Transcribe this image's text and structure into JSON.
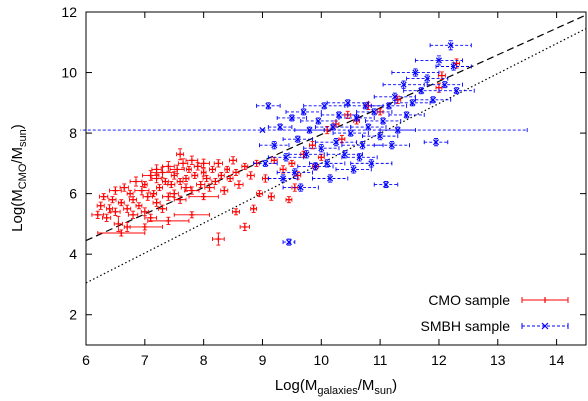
{
  "chart_data": {
    "type": "scatter",
    "xlabel": {
      "base": "Log(M",
      "sub": "galaxies",
      "mid": "/M",
      "sub2": "sun",
      "end": ")"
    },
    "ylabel": {
      "base": "Log(M",
      "sub": "CMO",
      "mid": "/M",
      "sub2": "sun",
      "end": ")"
    },
    "xlim": [
      6,
      14.5
    ],
    "ylim": [
      1,
      12
    ],
    "xticks": [
      "6",
      "7",
      "8",
      "9",
      "10",
      "11",
      "12",
      "13",
      "14"
    ],
    "yticks": [
      "2",
      "4",
      "6",
      "8",
      "10",
      "12"
    ],
    "grid": false,
    "legend_position": "bottom-right",
    "colors": {
      "cmo": "#ff0000",
      "smbh": "#0000ff",
      "fit": "#000000"
    },
    "lines": [
      {
        "style": "dashed",
        "x": [
          6.0,
          14.5
        ],
        "y": [
          4.45,
          11.9
        ]
      },
      {
        "style": "dotted",
        "x": [
          6.0,
          14.5
        ],
        "y": [
          3.05,
          11.45
        ]
      }
    ],
    "series": [
      {
        "name": "CMO sample",
        "marker": "plus",
        "points": [
          [
            6.2,
            5.3,
            0.1,
            0.12
          ],
          [
            6.25,
            5.6,
            0.06,
            0.12
          ],
          [
            6.3,
            5.9,
            0.07,
            0.1
          ],
          [
            6.35,
            5.2,
            0.07,
            0.12
          ],
          [
            6.4,
            5.5,
            0.05,
            0.13
          ],
          [
            6.45,
            5.8,
            0.06,
            0.1
          ],
          [
            6.5,
            5.4,
            0.08,
            0.12
          ],
          [
            6.5,
            6.1,
            0.1,
            0.12
          ],
          [
            6.55,
            5.0,
            0.07,
            0.25
          ],
          [
            6.6,
            5.7,
            0.05,
            0.1
          ],
          [
            6.65,
            6.2,
            0.07,
            0.12
          ],
          [
            6.7,
            5.5,
            0.06,
            0.12
          ],
          [
            6.7,
            4.9,
            0.05,
            0.15
          ],
          [
            6.75,
            6.0,
            0.05,
            0.11
          ],
          [
            6.8,
            5.3,
            0.08,
            0.12
          ],
          [
            6.8,
            5.8,
            0.06,
            0.1
          ],
          [
            6.85,
            6.4,
            0.1,
            0.15
          ],
          [
            6.9,
            5.6,
            0.05,
            0.1
          ],
          [
            6.95,
            6.1,
            0.12,
            0.14
          ],
          [
            7.0,
            5.4,
            0.06,
            0.13
          ],
          [
            7.0,
            6.3,
            0.04,
            0.1
          ],
          [
            7.05,
            5.9,
            0.08,
            0.12
          ],
          [
            7.1,
            6.6,
            0.14,
            0.16
          ],
          [
            7.1,
            5.2,
            0.1,
            0.12
          ],
          [
            7.15,
            6.0,
            0.05,
            0.1
          ],
          [
            7.2,
            5.7,
            0.06,
            0.12
          ],
          [
            7.2,
            6.5,
            0.08,
            0.14
          ],
          [
            7.25,
            6.2,
            0.05,
            0.1
          ],
          [
            7.3,
            6.7,
            0.2,
            0.18
          ],
          [
            7.3,
            5.5,
            0.07,
            0.12
          ],
          [
            7.35,
            6.4,
            0.05,
            0.1
          ],
          [
            7.4,
            5.9,
            0.1,
            0.12
          ],
          [
            7.4,
            6.9,
            0.1,
            0.16
          ],
          [
            7.45,
            6.3,
            0.06,
            0.1
          ],
          [
            7.5,
            6.6,
            0.05,
            0.12
          ],
          [
            7.5,
            6.0,
            0.07,
            0.12
          ],
          [
            7.55,
            6.8,
            0.12,
            0.14
          ],
          [
            7.6,
            6.4,
            0.05,
            0.1
          ],
          [
            7.6,
            5.8,
            0.1,
            0.12
          ],
          [
            7.65,
            7.0,
            0.08,
            0.15
          ],
          [
            7.7,
            6.5,
            0.05,
            0.1
          ],
          [
            7.7,
            6.2,
            0.08,
            0.12
          ],
          [
            7.75,
            6.8,
            0.04,
            0.1
          ],
          [
            7.8,
            6.1,
            0.12,
            0.12
          ],
          [
            7.8,
            7.1,
            0.1,
            0.14
          ],
          [
            7.85,
            6.6,
            0.05,
            0.1
          ],
          [
            7.9,
            6.9,
            0.06,
            0.12
          ],
          [
            7.95,
            6.3,
            0.07,
            0.1
          ],
          [
            8.0,
            6.7,
            0.04,
            0.12
          ],
          [
            8.0,
            7.0,
            0.1,
            0.14
          ],
          [
            8.05,
            6.5,
            0.06,
            0.1
          ],
          [
            8.1,
            6.2,
            0.08,
            0.12
          ],
          [
            8.15,
            6.8,
            0.05,
            0.1
          ],
          [
            8.2,
            6.4,
            0.06,
            0.1
          ],
          [
            8.25,
            7.0,
            0.07,
            0.12
          ],
          [
            8.3,
            6.6,
            0.05,
            0.1
          ],
          [
            8.35,
            6.1,
            0.06,
            0.12
          ],
          [
            8.4,
            6.8,
            0.04,
            0.1
          ],
          [
            8.45,
            6.5,
            0.05,
            0.1
          ],
          [
            8.5,
            7.1,
            0.06,
            0.12
          ],
          [
            8.55,
            6.7,
            0.05,
            0.1
          ],
          [
            8.6,
            6.3,
            0.07,
            0.12
          ],
          [
            8.7,
            6.9,
            0.05,
            0.1
          ],
          [
            8.8,
            6.6,
            0.06,
            0.12
          ],
          [
            8.9,
            7.0,
            0.05,
            0.1
          ],
          [
            6.6,
            4.7,
            0.4,
            0.1
          ],
          [
            7.0,
            4.9,
            0.3,
            0.1
          ],
          [
            7.4,
            5.1,
            0.35,
            0.12
          ],
          [
            7.8,
            5.3,
            0.3,
            0.1
          ],
          [
            8.0,
            5.9,
            0.25,
            0.1
          ],
          [
            7.2,
            6.8,
            0.08,
            0.15
          ],
          [
            7.6,
            7.3,
            0.06,
            0.18
          ],
          [
            8.25,
            4.5,
            0.1,
            0.2
          ],
          [
            8.7,
            4.9,
            0.08,
            0.12
          ],
          [
            8.55,
            5.4,
            0.06,
            0.1
          ],
          [
            8.85,
            5.5,
            0.05,
            0.12
          ],
          [
            8.95,
            6.0,
            0.05,
            0.1
          ],
          [
            9.05,
            6.5,
            0.05,
            0.12
          ],
          [
            9.2,
            7.1,
            0.05,
            0.1
          ],
          [
            9.35,
            6.8,
            0.05,
            0.12
          ],
          [
            9.5,
            7.0,
            0.05,
            0.1
          ],
          [
            9.55,
            6.2,
            0.05,
            0.12
          ],
          [
            9.7,
            7.3,
            0.05,
            0.1
          ],
          [
            9.85,
            7.6,
            0.05,
            0.12
          ],
          [
            10.0,
            7.2,
            0.05,
            0.1
          ],
          [
            10.1,
            8.1,
            0.05,
            0.12
          ],
          [
            10.25,
            8.3,
            0.05,
            0.1
          ],
          [
            10.35,
            7.8,
            0.05,
            0.12
          ],
          [
            10.45,
            8.6,
            0.05,
            0.12
          ],
          [
            10.6,
            8.4,
            0.05,
            0.1
          ],
          [
            10.8,
            8.9,
            0.05,
            0.12
          ],
          [
            11.0,
            8.7,
            0.05,
            0.1
          ],
          [
            11.3,
            9.1,
            0.05,
            0.12
          ],
          [
            12.0,
            9.5,
            0.05,
            0.15
          ],
          [
            12.05,
            9.9,
            0.06,
            0.12
          ],
          [
            12.3,
            10.3,
            0.05,
            0.15
          ],
          [
            9.15,
            5.9,
            0.05,
            0.12
          ],
          [
            9.45,
            5.8,
            0.05,
            0.1
          ],
          [
            9.6,
            6.6,
            0.05,
            0.12
          ],
          [
            9.9,
            6.9,
            0.05,
            0.1
          ]
        ]
      },
      {
        "name": "SMBH sample",
        "marker": "x",
        "points": [
          [
            9.0,
            8.1,
            4.5,
            0
          ],
          [
            9.05,
            7.0,
            0.2,
            0.1
          ],
          [
            9.1,
            8.9,
            0.2,
            0.1
          ],
          [
            9.2,
            7.6,
            0.25,
            0.12
          ],
          [
            9.3,
            8.2,
            0.2,
            0.1
          ],
          [
            9.4,
            7.2,
            0.3,
            0.12
          ],
          [
            9.45,
            4.4,
            0.1,
            0.1
          ],
          [
            9.5,
            8.5,
            0.25,
            0.1
          ],
          [
            9.55,
            6.7,
            0.3,
            0.12
          ],
          [
            9.6,
            7.8,
            0.25,
            0.1
          ],
          [
            9.7,
            8.7,
            0.3,
            0.1
          ],
          [
            9.75,
            7.3,
            0.3,
            0.12
          ],
          [
            9.8,
            8.1,
            0.25,
            0.1
          ],
          [
            9.9,
            6.9,
            0.3,
            0.12
          ],
          [
            9.95,
            8.4,
            0.3,
            0.1
          ],
          [
            10.0,
            7.5,
            0.3,
            0.12
          ],
          [
            10.05,
            8.9,
            0.35,
            0.1
          ],
          [
            10.1,
            7.0,
            0.3,
            0.12
          ],
          [
            10.2,
            8.2,
            0.3,
            0.1
          ],
          [
            10.25,
            7.7,
            0.35,
            0.12
          ],
          [
            10.3,
            8.6,
            0.3,
            0.1
          ],
          [
            10.4,
            7.3,
            0.3,
            0.12
          ],
          [
            10.45,
            9.0,
            0.35,
            0.1
          ],
          [
            10.5,
            8.0,
            0.3,
            0.1
          ],
          [
            10.55,
            6.8,
            0.3,
            0.12
          ],
          [
            10.6,
            8.5,
            0.3,
            0.1
          ],
          [
            10.7,
            7.6,
            0.35,
            0.12
          ],
          [
            10.75,
            8.9,
            0.3,
            0.1
          ],
          [
            10.8,
            8.2,
            0.3,
            0.1
          ],
          [
            10.85,
            7.0,
            0.35,
            0.12
          ],
          [
            10.9,
            8.7,
            0.3,
            0.1
          ],
          [
            11.0,
            7.9,
            0.3,
            0.12
          ],
          [
            11.05,
            8.4,
            0.3,
            0.1
          ],
          [
            11.1,
            6.3,
            0.2,
            0.1
          ],
          [
            11.15,
            8.9,
            0.3,
            0.1
          ],
          [
            11.25,
            9.2,
            0.35,
            0.12
          ],
          [
            11.3,
            8.1,
            0.3,
            0.1
          ],
          [
            11.4,
            9.6,
            0.35,
            0.12
          ],
          [
            11.45,
            8.6,
            0.3,
            0.1
          ],
          [
            11.55,
            9.0,
            0.3,
            0.1
          ],
          [
            11.6,
            10.0,
            0.4,
            0.12
          ],
          [
            11.7,
            9.4,
            0.3,
            0.1
          ],
          [
            11.8,
            9.8,
            0.35,
            0.12
          ],
          [
            11.9,
            9.1,
            0.3,
            0.1
          ],
          [
            11.95,
            7.7,
            0.2,
            0.12
          ],
          [
            12.0,
            10.4,
            0.4,
            0.15
          ],
          [
            12.1,
            9.6,
            0.3,
            0.1
          ],
          [
            12.2,
            10.9,
            0.35,
            0.15
          ],
          [
            12.25,
            10.2,
            0.3,
            0.12
          ],
          [
            12.3,
            9.4,
            0.3,
            0.1
          ],
          [
            9.35,
            6.5,
            0.25,
            0.12
          ],
          [
            9.65,
            6.2,
            0.3,
            0.12
          ],
          [
            10.15,
            6.5,
            0.3,
            0.12
          ],
          [
            10.65,
            7.2,
            0.3,
            0.12
          ],
          [
            11.2,
            7.6,
            0.3,
            0.12
          ]
        ]
      }
    ]
  }
}
